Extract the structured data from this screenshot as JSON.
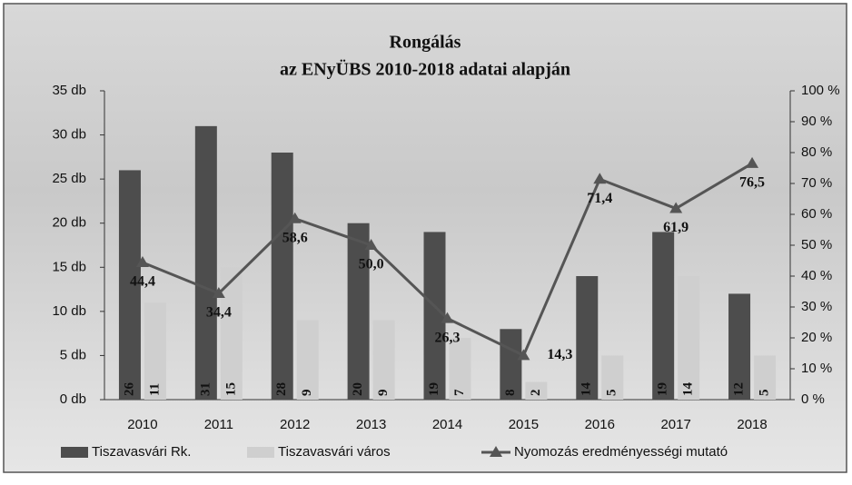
{
  "chart_data": {
    "type": "bar",
    "title": "Rongálás",
    "subtitle": "az ENyÜBS 2010-2018 adatai alapján",
    "categories": [
      "2010",
      "2011",
      "2012",
      "2013",
      "2014",
      "2015",
      "2016",
      "2017",
      "2018"
    ],
    "series": [
      {
        "name": "Tiszavasvári Rk.",
        "color": "#4d4d4d",
        "values": [
          26,
          31,
          28,
          20,
          19,
          8,
          14,
          19,
          12
        ]
      },
      {
        "name": "Tiszavasvári város",
        "color": "#cfcfcf",
        "values": [
          11,
          15,
          9,
          9,
          7,
          2,
          5,
          14,
          5
        ]
      },
      {
        "name": "Nyomozás eredményességi mutató",
        "color": "#555555",
        "type": "line",
        "axis": "y2",
        "values": [
          44.4,
          34.4,
          58.6,
          50.0,
          26.3,
          14.3,
          71.4,
          61.9,
          76.5
        ],
        "value_labels": [
          "44,4",
          "34,4",
          "58,6",
          "50,0",
          "26,3",
          "14,3",
          "71,4",
          "61,9",
          "76,5"
        ]
      }
    ],
    "ylim": [
      0,
      35
    ],
    "yticks": [
      {
        "value": 0,
        "label": "0 db"
      },
      {
        "value": 5,
        "label": "5 db"
      },
      {
        "value": 10,
        "label": "10 db"
      },
      {
        "value": 15,
        "label": "15 db"
      },
      {
        "value": 20,
        "label": "20 db"
      },
      {
        "value": 25,
        "label": "25 db"
      },
      {
        "value": 30,
        "label": "30 db"
      },
      {
        "value": 35,
        "label": "35 db"
      }
    ],
    "y2lim": [
      0,
      100
    ],
    "y2ticks": [
      {
        "value": 0,
        "label": "0 %"
      },
      {
        "value": 10,
        "label": "10 %"
      },
      {
        "value": 20,
        "label": "20 %"
      },
      {
        "value": 30,
        "label": "30 %"
      },
      {
        "value": 40,
        "label": "40 %"
      },
      {
        "value": 50,
        "label": "50 %"
      },
      {
        "value": 60,
        "label": "60 %"
      },
      {
        "value": 70,
        "label": "70 %"
      },
      {
        "value": 80,
        "label": "80 %"
      },
      {
        "value": 90,
        "label": "90 %"
      },
      {
        "value": 100,
        "label": "100 %"
      }
    ],
    "grid": false,
    "legend": "bottom"
  }
}
